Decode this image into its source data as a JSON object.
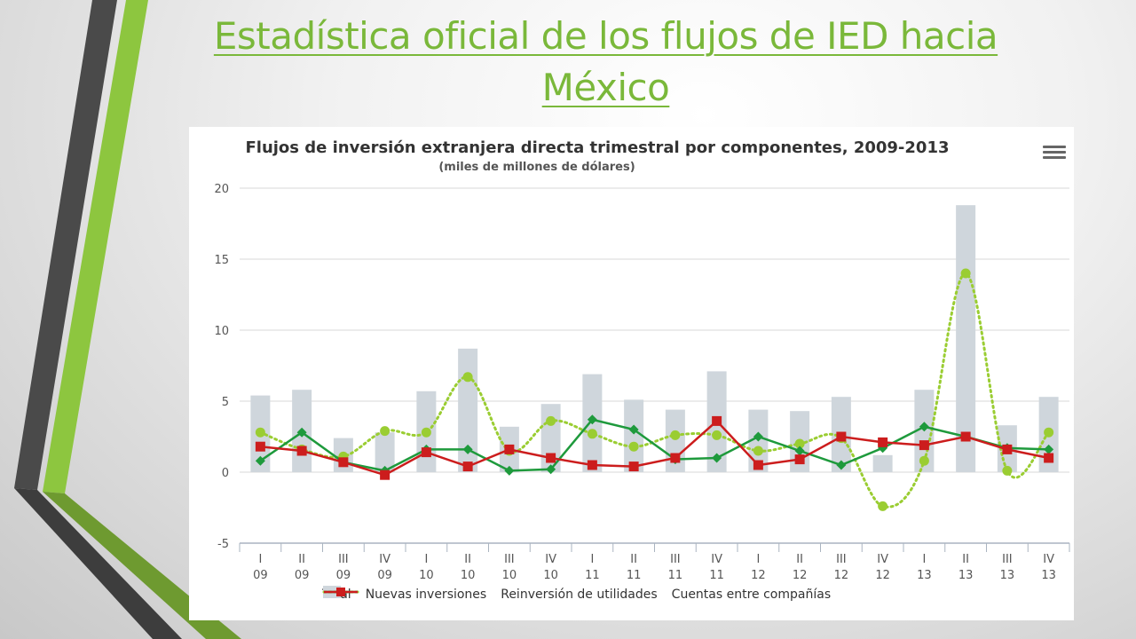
{
  "slide": {
    "title": "Estadística oficial de los flujos de IED hacia México"
  },
  "colors": {
    "accent_green": "#8dc63f",
    "title_green": "#7ab83a",
    "total_bar": "#cfd6dc",
    "nuevas": "#9acd32",
    "reinversion": "#1e9a3c",
    "cuentas": "#cc1d1d"
  },
  "chart": {
    "menu_icon": "hamburger-menu-icon"
  },
  "chart_data": {
    "type": "bar",
    "title": "Flujos de inversión extranjera directa trimestral por componentes, 2009-2013",
    "subtitle": "(miles de millones de dólares)",
    "categories": [
      [
        "I",
        "09"
      ],
      [
        "II",
        "09"
      ],
      [
        "III",
        "09"
      ],
      [
        "IV",
        "09"
      ],
      [
        "I",
        "10"
      ],
      [
        "II",
        "10"
      ],
      [
        "III",
        "10"
      ],
      [
        "IV",
        "10"
      ],
      [
        "I",
        "11"
      ],
      [
        "II",
        "11"
      ],
      [
        "III",
        "11"
      ],
      [
        "IV",
        "11"
      ],
      [
        "I",
        "12"
      ],
      [
        "II",
        "12"
      ],
      [
        "III",
        "12"
      ],
      [
        "IV",
        "12"
      ],
      [
        "I",
        "13"
      ],
      [
        "II",
        "13"
      ],
      [
        "III",
        "13"
      ],
      [
        "IV",
        "13"
      ]
    ],
    "ylim": [
      -5,
      20
    ],
    "yticks": [
      -5,
      0,
      5,
      10,
      15,
      20
    ],
    "grid": true,
    "legend_position": "bottom",
    "series": [
      {
        "name": "Total",
        "kind": "bar",
        "color": "#cfd6dc",
        "values": [
          5.4,
          5.8,
          2.4,
          2.8,
          5.7,
          8.7,
          3.2,
          4.8,
          6.9,
          5.1,
          4.4,
          7.1,
          4.4,
          4.3,
          5.3,
          1.2,
          5.8,
          18.8,
          3.3,
          5.3
        ]
      },
      {
        "name": "Nuevas inversiones",
        "kind": "dotted-line",
        "color": "#9acd32",
        "values": [
          2.8,
          1.6,
          1.1,
          2.9,
          2.8,
          6.7,
          1.5,
          3.6,
          2.7,
          1.8,
          2.6,
          2.6,
          1.5,
          2.0,
          2.4,
          -2.4,
          0.8,
          14.0,
          0.1,
          2.8
        ]
      },
      {
        "name": "Reinversión de utilidades",
        "kind": "line",
        "color": "#1e9a3c",
        "values": [
          0.8,
          2.8,
          0.7,
          0.1,
          1.6,
          1.6,
          0.1,
          0.2,
          3.7,
          3.0,
          0.9,
          1.0,
          2.5,
          1.5,
          0.5,
          1.7,
          3.2,
          2.5,
          1.7,
          1.6
        ]
      },
      {
        "name": "Cuentas entre compañías",
        "kind": "line",
        "color": "#cc1d1d",
        "values": [
          1.8,
          1.5,
          0.7,
          -0.2,
          1.4,
          0.4,
          1.6,
          1.0,
          0.5,
          0.4,
          1.0,
          3.6,
          0.5,
          0.9,
          2.5,
          2.1,
          1.9,
          2.5,
          1.6,
          1.0
        ]
      }
    ]
  }
}
